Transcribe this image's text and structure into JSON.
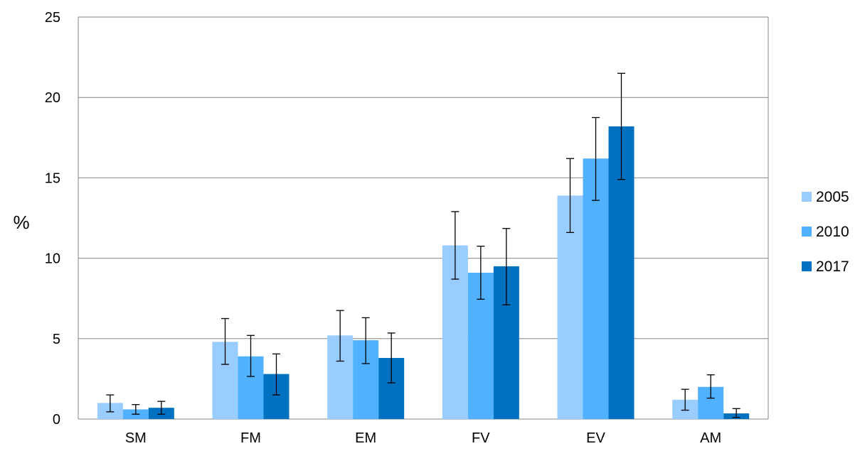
{
  "chart_data": {
    "type": "bar",
    "title": "",
    "xlabel": "",
    "ylabel": "%",
    "ylim": [
      0,
      25
    ],
    "yticks": [
      0,
      5,
      10,
      15,
      20,
      25
    ],
    "grid": true,
    "legend_position": "right",
    "categories": [
      "SM",
      "FM",
      "EM",
      "FV",
      "EV",
      "AM"
    ],
    "series": [
      {
        "name": "2005",
        "color": "#99ccff",
        "values": [
          1.0,
          4.8,
          5.2,
          10.8,
          13.9,
          1.2
        ],
        "error_low": [
          0.45,
          3.4,
          3.6,
          8.7,
          11.6,
          0.55
        ],
        "error_high": [
          1.5,
          6.25,
          6.75,
          12.9,
          16.2,
          1.85
        ]
      },
      {
        "name": "2010",
        "color": "#4fb1ff",
        "values": [
          0.6,
          3.9,
          4.9,
          9.1,
          16.2,
          2.0
        ],
        "error_low": [
          0.3,
          2.65,
          3.45,
          7.45,
          13.6,
          1.3
        ],
        "error_high": [
          0.9,
          5.2,
          6.3,
          10.75,
          18.75,
          2.75
        ]
      },
      {
        "name": "2017",
        "color": "#0070c0",
        "values": [
          0.7,
          2.8,
          3.8,
          9.5,
          18.2,
          0.35
        ],
        "error_low": [
          0.3,
          1.5,
          2.25,
          7.1,
          14.9,
          0.1
        ],
        "error_high": [
          1.1,
          4.05,
          5.35,
          11.85,
          21.5,
          0.65
        ]
      }
    ]
  }
}
